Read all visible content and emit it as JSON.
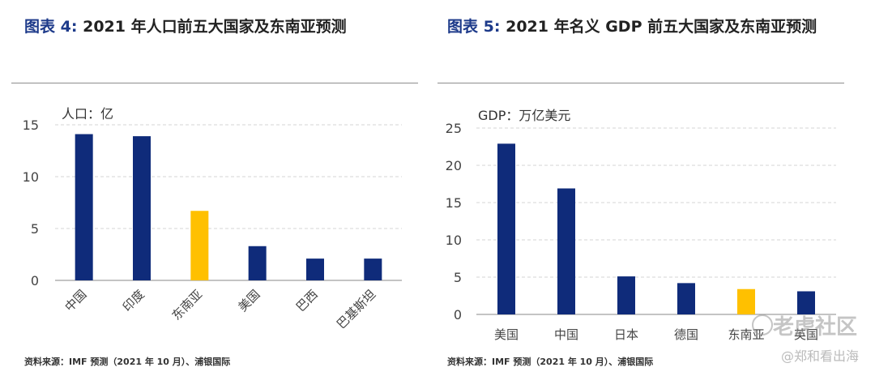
{
  "colors": {
    "navy": "#0f2b7a",
    "highlight": "#ffc000",
    "title_tag": "#1d3a8a"
  },
  "watermark": {
    "main": "老虎社区",
    "sub": "@郑和看出海"
  },
  "chart_data": [
    {
      "type": "bar",
      "tag": "图表",
      "number": "4:",
      "title": "2021 年人口前五大国家及东南亚预测",
      "unit_label": "人口：亿",
      "categories": [
        "中国",
        "印度",
        "东南亚",
        "美国",
        "巴西",
        "巴基斯坦"
      ],
      "values": [
        14.1,
        13.9,
        6.7,
        3.3,
        2.1,
        2.1
      ],
      "highlight_index": 2,
      "ylim": [
        0,
        15
      ],
      "yticks": [
        "0",
        "5",
        "10",
        "15"
      ],
      "grid": true,
      "rotate_labels": true,
      "source": "资料来源：IMF 预测（2021 年 10 月）、浦银国际"
    },
    {
      "type": "bar",
      "tag": "图表",
      "number": "5:",
      "title": "2021 年名义 GDP 前五大国家及东南亚预测",
      "unit_label": "GDP：万亿美元",
      "categories": [
        "美国",
        "中国",
        "日本",
        "德国",
        "东南亚",
        "英国"
      ],
      "values": [
        22.9,
        16.9,
        5.1,
        4.2,
        3.4,
        3.1
      ],
      "highlight_index": 4,
      "ylim": [
        0,
        25
      ],
      "yticks": [
        "0",
        "5",
        "10",
        "15",
        "20",
        "25"
      ],
      "grid": true,
      "rotate_labels": false,
      "source": "资料来源：IMF 预测（2021 年 10 月）、浦银国际"
    }
  ]
}
